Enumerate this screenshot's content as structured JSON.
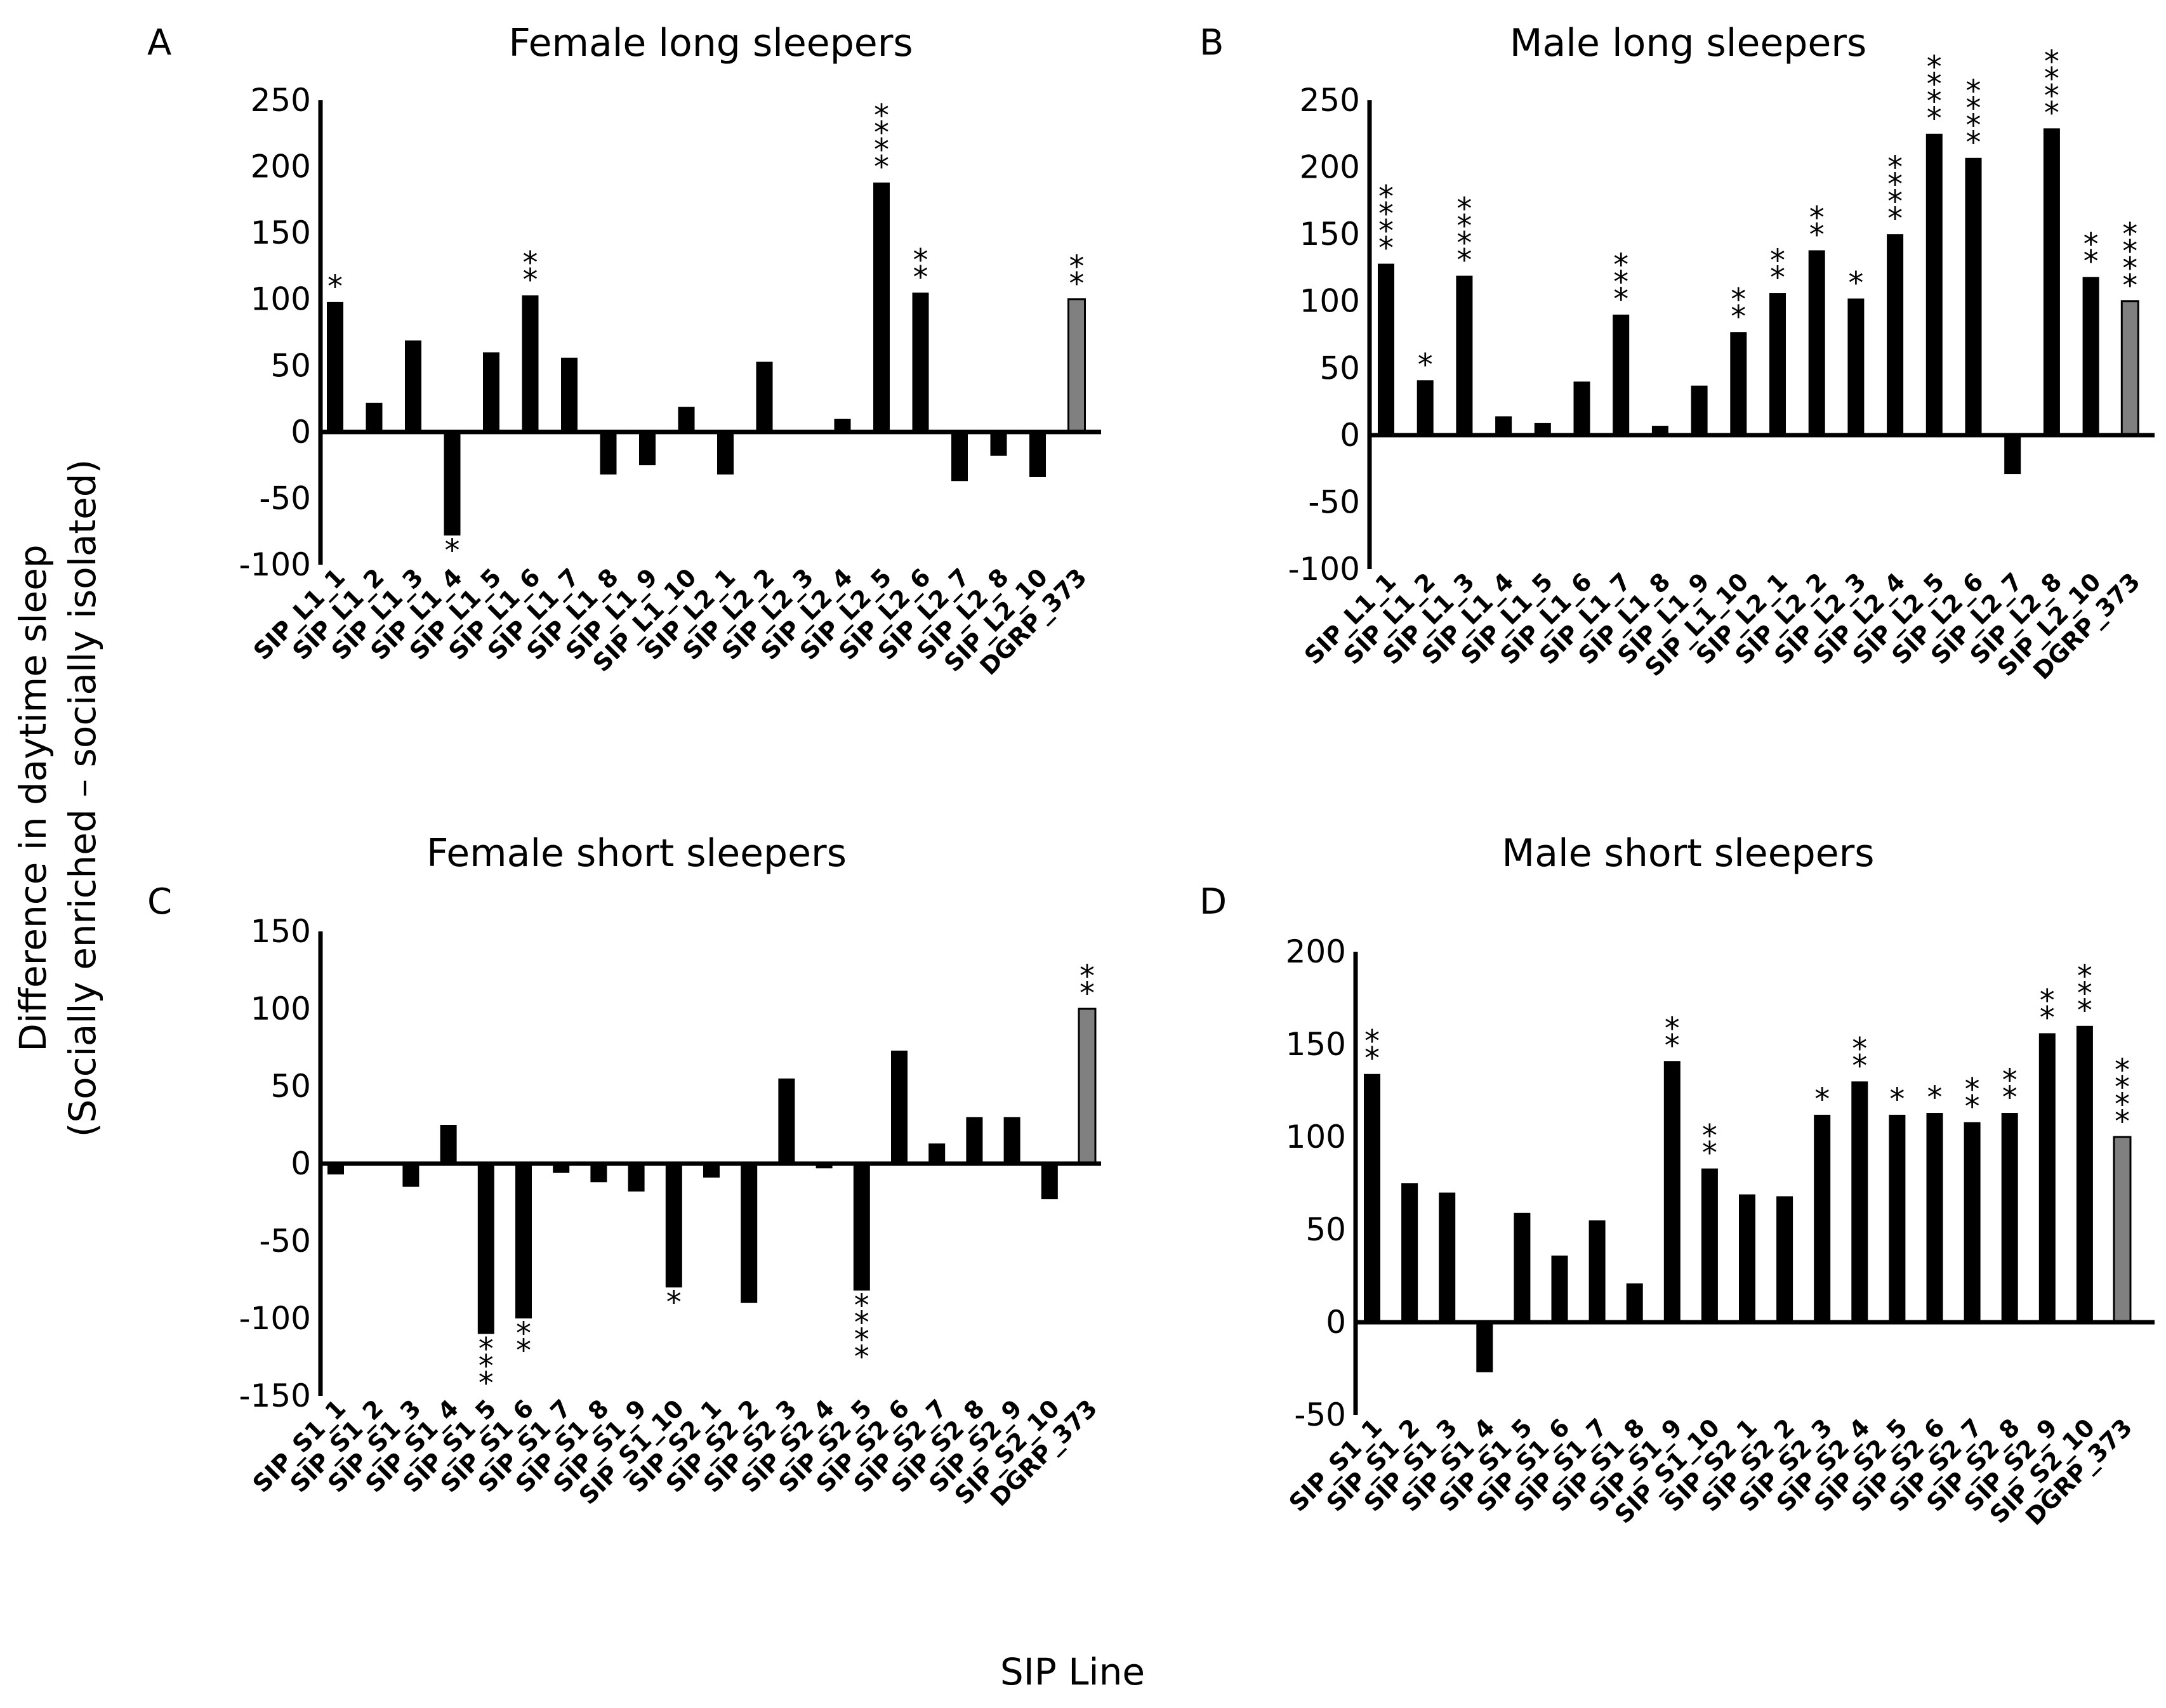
{
  "figure": {
    "ylabel_line1": "Difference in daytime sleep",
    "ylabel_line2": "(Socially enriched – socially isolated)",
    "xlabel": "SIP Line"
  },
  "colors": {
    "bar": "#000000",
    "control_bar": "#808080",
    "axis": "#000000"
  },
  "chart_data": [
    {
      "type": "bar",
      "letter": "A",
      "title": "Female long sleepers",
      "ylim": [
        -100,
        250
      ],
      "yticks": [
        250,
        200,
        150,
        100,
        50,
        0,
        -50,
        -100
      ],
      "categories": [
        "SIP_L1_1",
        "SIP_L1_2",
        "SIP_L1_3",
        "SIP_L1_4",
        "SIP_L1_5",
        "SIP_L1_6",
        "SIP_L1_7",
        "SIP_L1_8",
        "SIP_L1_9",
        "SIP_L1_10",
        "SIP_L2_1",
        "SIP_L2_2",
        "SIP_L2_3",
        "SIP_L2_4",
        "SIP_L2_5",
        "SIP_L2_6",
        "SIP_L2_7",
        "SIP_L2_8",
        "SIP_L2_10",
        "DGRP_373"
      ],
      "values": [
        98,
        22,
        69,
        -78,
        60,
        103,
        56,
        -32,
        -25,
        19,
        -32,
        53,
        0,
        10,
        188,
        105,
        -37,
        -18,
        -34,
        100
      ],
      "significance": [
        "*",
        "",
        "",
        "*",
        "",
        "**",
        "",
        "",
        "",
        "",
        "",
        "",
        "",
        "",
        "****",
        "**",
        "",
        "",
        "",
        "**"
      ]
    },
    {
      "type": "bar",
      "letter": "B",
      "title": "Male long sleepers",
      "ylim": [
        -100,
        250
      ],
      "yticks": [
        250,
        200,
        150,
        100,
        50,
        0,
        -50,
        -100
      ],
      "categories": [
        "SIP_L1_1",
        "SIP_L1_2",
        "SIP_L1_3",
        "SIP_L1_4",
        "SIP_L1_5",
        "SIP_L1_6",
        "SIP_L1_7",
        "SIP_L1_8",
        "SIP_L1_9",
        "SIP_L1_10",
        "SIP_L2_1",
        "SIP_L2_2",
        "SIP_L2_3",
        "SIP_L2_4",
        "SIP_L2_5",
        "SIP_L2_6",
        "SIP_L2_7",
        "SIP_L2_8",
        "SIP_L2_10",
        "DGRP_373"
      ],
      "values": [
        128,
        41,
        119,
        14,
        9,
        40,
        90,
        7,
        37,
        77,
        106,
        138,
        102,
        150,
        225,
        207,
        -29,
        229,
        118,
        100
      ],
      "significance": [
        "****",
        "*",
        "****",
        "",
        "",
        "",
        "***",
        "",
        "",
        "**",
        "**",
        "**",
        "*",
        "****",
        "****",
        "****",
        "",
        "****",
        "**",
        "****"
      ]
    },
    {
      "type": "bar",
      "letter": "C",
      "title": "Female short sleepers",
      "ylim": [
        -150,
        150
      ],
      "yticks": [
        150,
        100,
        50,
        0,
        -50,
        -100,
        -150
      ],
      "categories": [
        "SIP_S1_1",
        "SIP_S1_2",
        "SIP_S1_3",
        "SIP_S1_4",
        "SIP_S1_5",
        "SIP_S1_6",
        "SIP_S1_7",
        "SIP_S1_8",
        "SIP_S1_9",
        "SIP_S1_10",
        "SIP_S2_1",
        "SIP_S2_2",
        "SIP_S2_3",
        "SIP_S2_4",
        "SIP_S2_5",
        "SIP_S2_6",
        "SIP_S2_7",
        "SIP_S2_8",
        "SIP_S2_9",
        "SIP_S2_10",
        "DGRP_373"
      ],
      "values": [
        -7,
        0,
        -15,
        25,
        -110,
        -100,
        -6,
        -12,
        -18,
        -80,
        -9,
        -90,
        55,
        -3,
        -82,
        73,
        13,
        30,
        30,
        -23,
        100
      ],
      "significance": [
        "",
        "",
        "",
        "",
        "***",
        "**",
        "",
        "",
        "",
        "*",
        "",
        "",
        "",
        "",
        "****",
        "",
        "",
        "",
        "",
        "",
        "**"
      ]
    },
    {
      "type": "bar",
      "letter": "D",
      "title": "Male short sleepers",
      "ylim": [
        -50,
        200
      ],
      "yticks": [
        200,
        150,
        100,
        50,
        0,
        -50
      ],
      "categories": [
        "SIP_S1_1",
        "SIP_S1_2",
        "SIP_S1_3",
        "SIP_S1_4",
        "SIP_S1_5",
        "SIP_S1_6",
        "SIP_S1_7",
        "SIP_S1_8",
        "SIP_S1_9",
        "SIP_S1_10",
        "SIP_S2_1",
        "SIP_S2_2",
        "SIP_S2_3",
        "SIP_S2_4",
        "SIP_S2_5",
        "SIP_S2_6",
        "SIP_S2_7",
        "SIP_S2_8",
        "SIP_S2_9",
        "SIP_S2_10",
        "DGRP_373"
      ],
      "values": [
        134,
        75,
        70,
        -27,
        59,
        36,
        55,
        21,
        141,
        83,
        69,
        68,
        112,
        130,
        112,
        113,
        108,
        113,
        156,
        160,
        100
      ],
      "significance": [
        "**",
        "",
        "",
        "",
        "",
        "",
        "",
        "",
        "**",
        "**",
        "",
        "",
        "*",
        "**",
        "*",
        "*",
        "**",
        "**",
        "**",
        "***",
        "****"
      ]
    }
  ]
}
